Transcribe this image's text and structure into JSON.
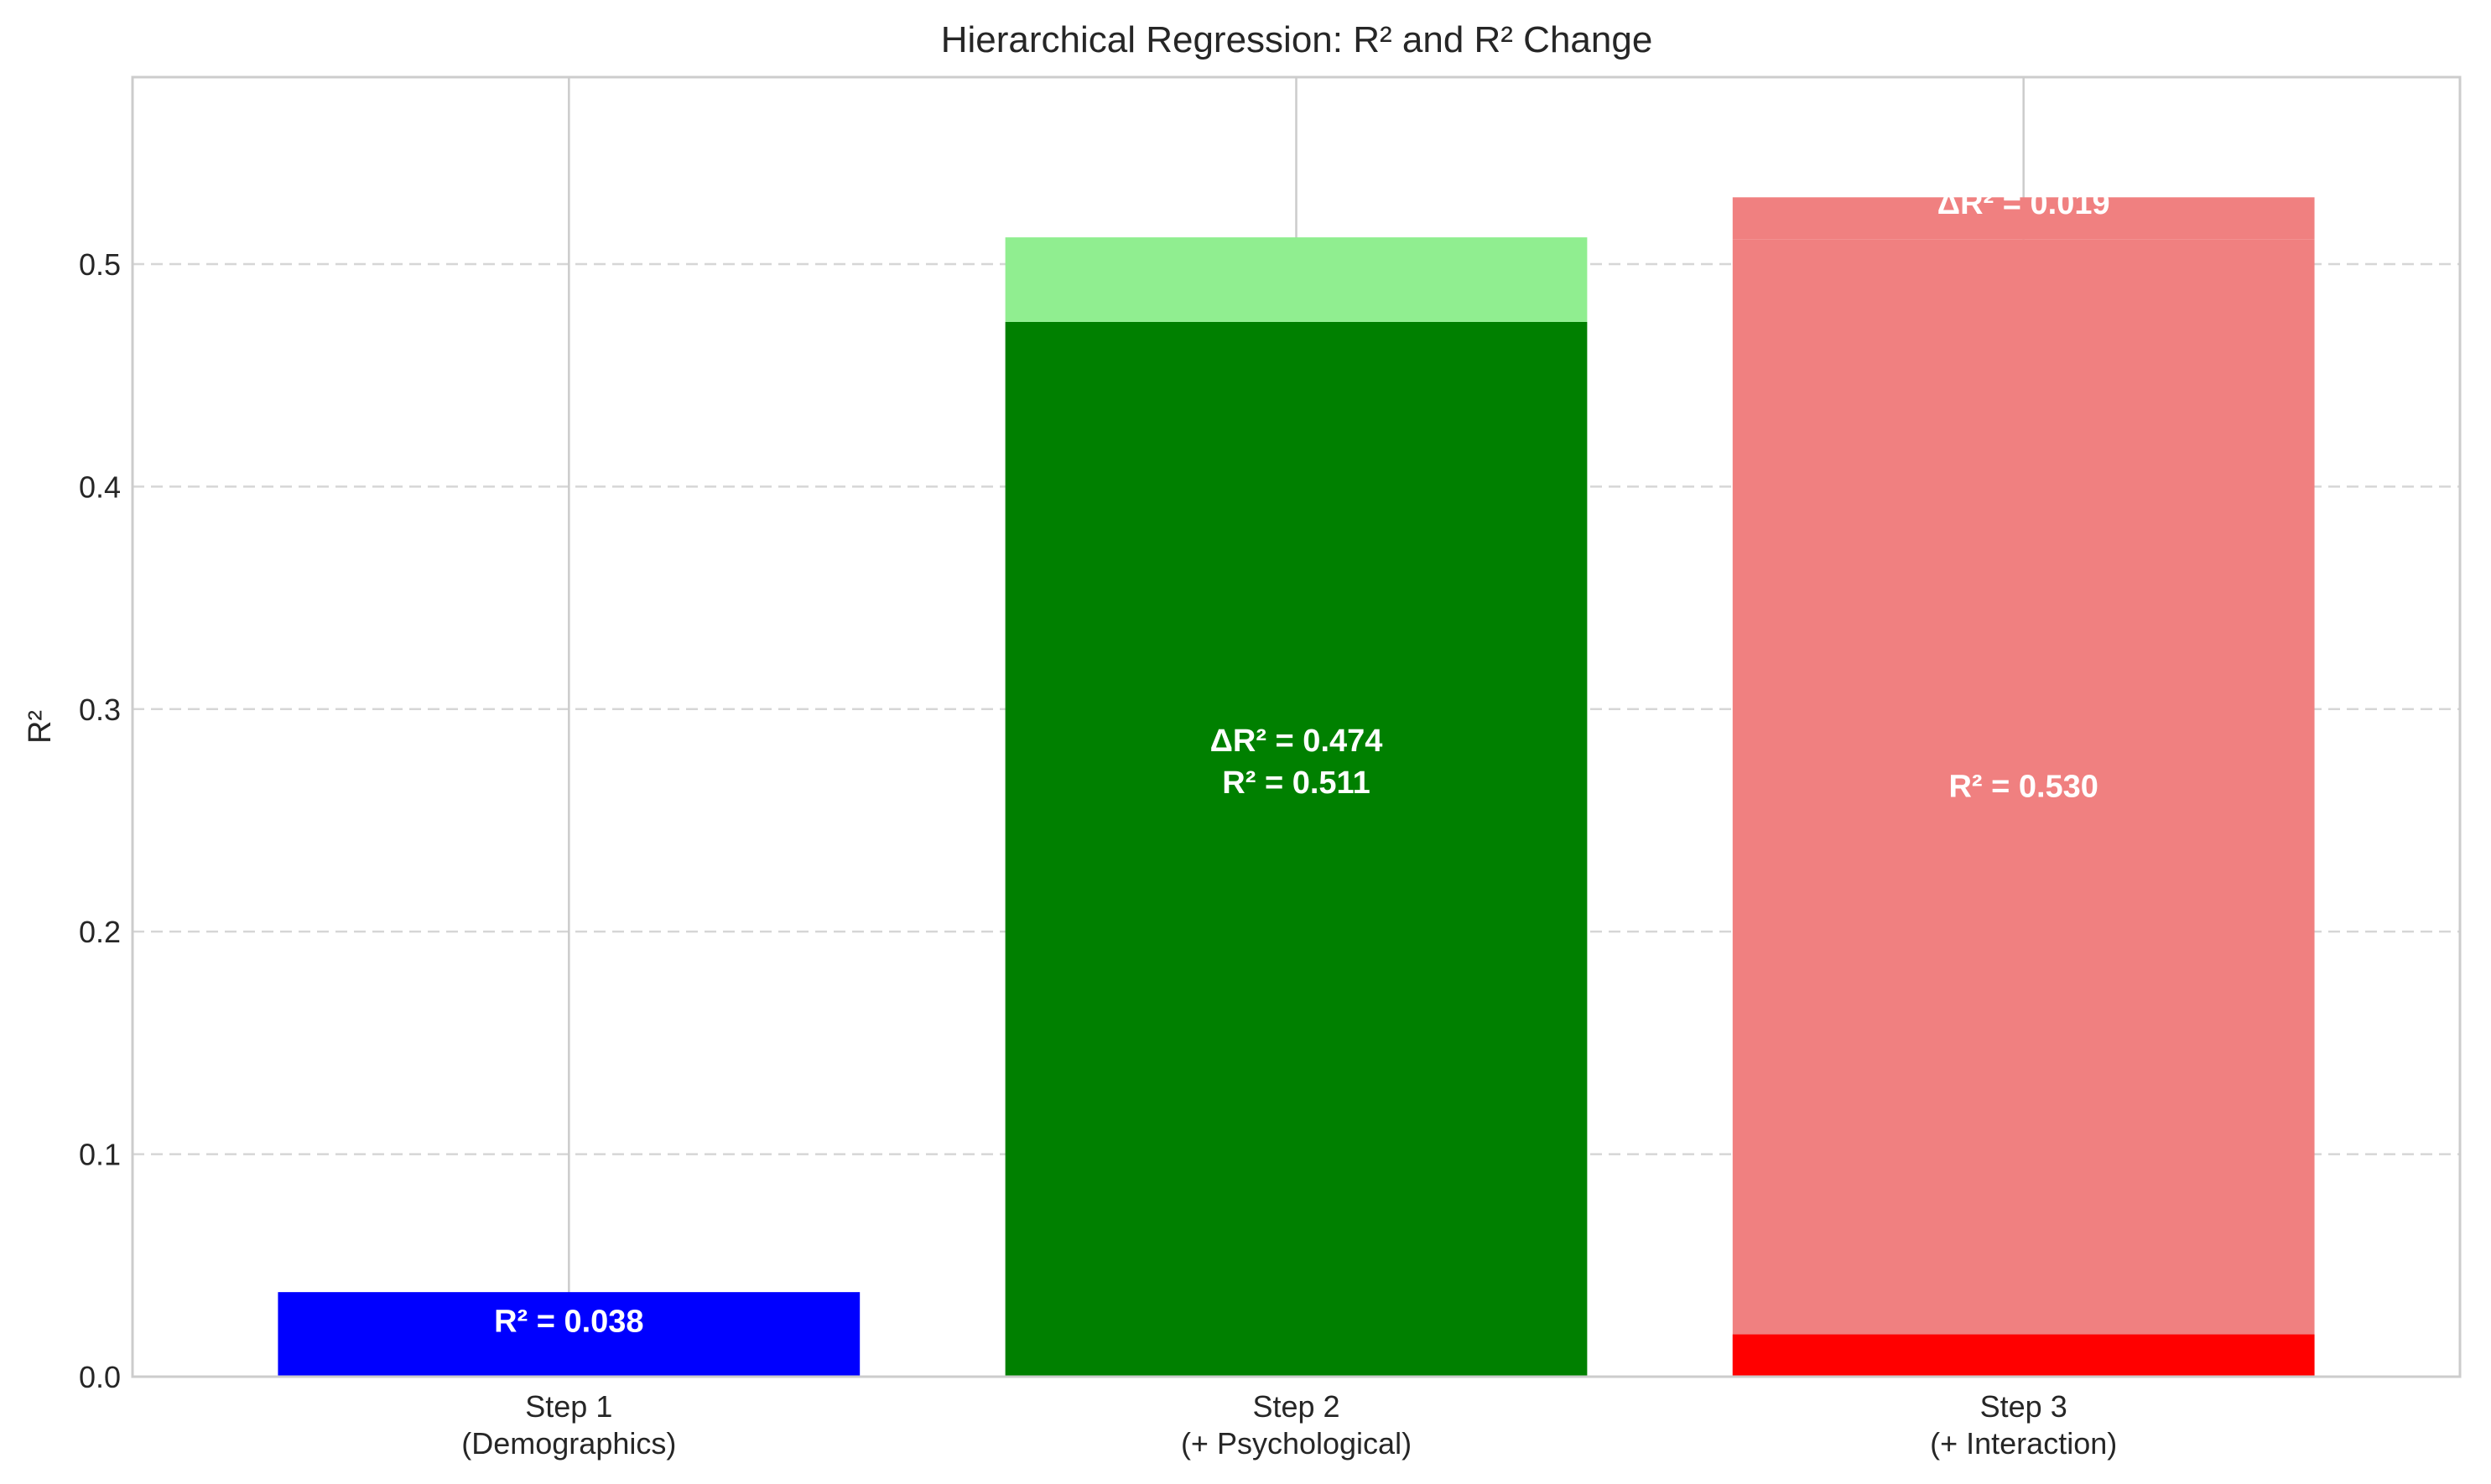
{
  "chart_data": {
    "type": "bar",
    "title": "Hierarchical Regression: R² and R² Change",
    "xlabel": "",
    "ylabel": "R²",
    "ylim": [
      0,
      0.584
    ],
    "yticks": [
      "0.0",
      "0.1",
      "0.2",
      "0.3",
      "0.4",
      "0.5"
    ],
    "ytick_values": [
      0.0,
      0.1,
      0.2,
      0.3,
      0.4,
      0.5
    ],
    "grid": "y dashed, x solid",
    "categories": [
      [
        "Step 1",
        "(Demographics)"
      ],
      [
        "Step 2",
        "(+ Psychological)"
      ],
      [
        "Step 3",
        "(+ Interaction)"
      ]
    ],
    "bars": [
      {
        "step": "Step 1",
        "segments": [
          {
            "bottom": 0.0,
            "value": 0.038,
            "color": "#0000ff"
          }
        ],
        "labels": [
          {
            "lines": [
              "R² = 0.038"
            ],
            "y": 0.025
          }
        ]
      },
      {
        "step": "Step 2",
        "segments": [
          {
            "bottom": 0.0,
            "value": 0.474,
            "color": "#008000"
          },
          {
            "bottom": 0.474,
            "value": 0.038,
            "color": "#90ee90"
          }
        ],
        "labels": [
          {
            "lines": [
              "ΔR² = 0.474",
              "R² = 0.511"
            ],
            "y": 0.2765
          }
        ]
      },
      {
        "step": "Step 3",
        "segments": [
          {
            "bottom": 0.0,
            "value": 0.511,
            "color": "#f08080"
          },
          {
            "bottom": 0.0,
            "value": 0.019,
            "color": "#ff0000"
          },
          {
            "bottom": 0.511,
            "value": 0.019,
            "color": "#f08080"
          }
        ],
        "labels": [
          {
            "lines": [
              "ΔR² = 0.019"
            ],
            "y": 0.5275
          },
          {
            "lines": [
              "R² = 0.530"
            ],
            "y": 0.2655
          }
        ]
      }
    ]
  }
}
